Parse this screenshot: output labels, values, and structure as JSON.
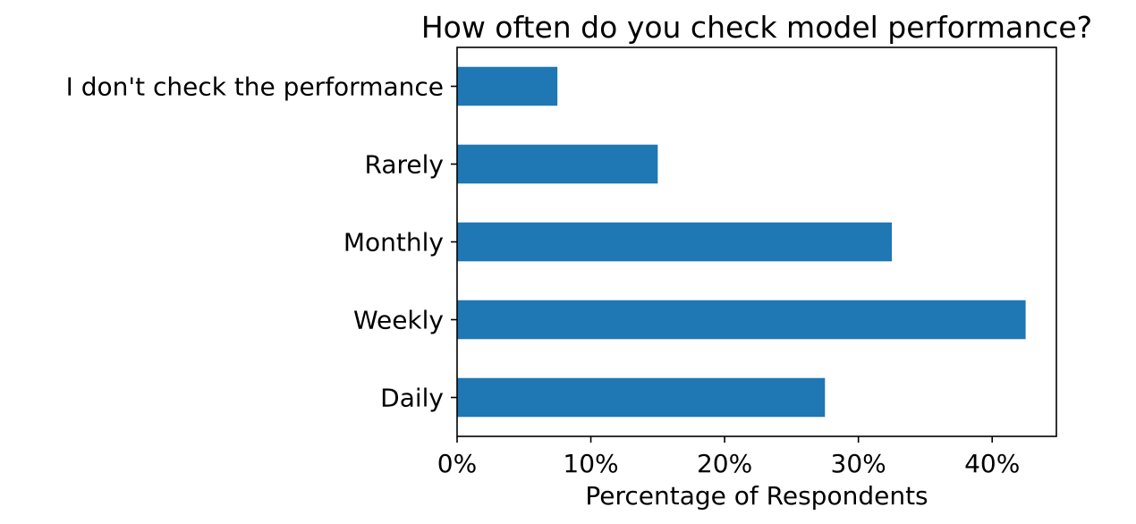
{
  "chart_data": {
    "type": "bar",
    "orientation": "horizontal",
    "title": "How often do you check model performance?",
    "xlabel": "Percentage of Respondents",
    "ylabel": "",
    "categories": [
      "Daily",
      "Weekly",
      "Monthly",
      "Rarely",
      "I don't check the performance"
    ],
    "values": [
      27.5,
      42.5,
      32.5,
      15.0,
      7.5
    ],
    "value_unit": "%",
    "xlim": [
      0,
      44.8
    ],
    "xticks": [
      0,
      10,
      20,
      30,
      40
    ],
    "xtick_labels": [
      "0%",
      "10%",
      "20%",
      "30%",
      "40%"
    ],
    "grid": false,
    "legend": "none",
    "colors": {
      "bar": "#1f77b4",
      "axes": "#000000",
      "text": "#000000",
      "background": "#ffffff"
    }
  }
}
